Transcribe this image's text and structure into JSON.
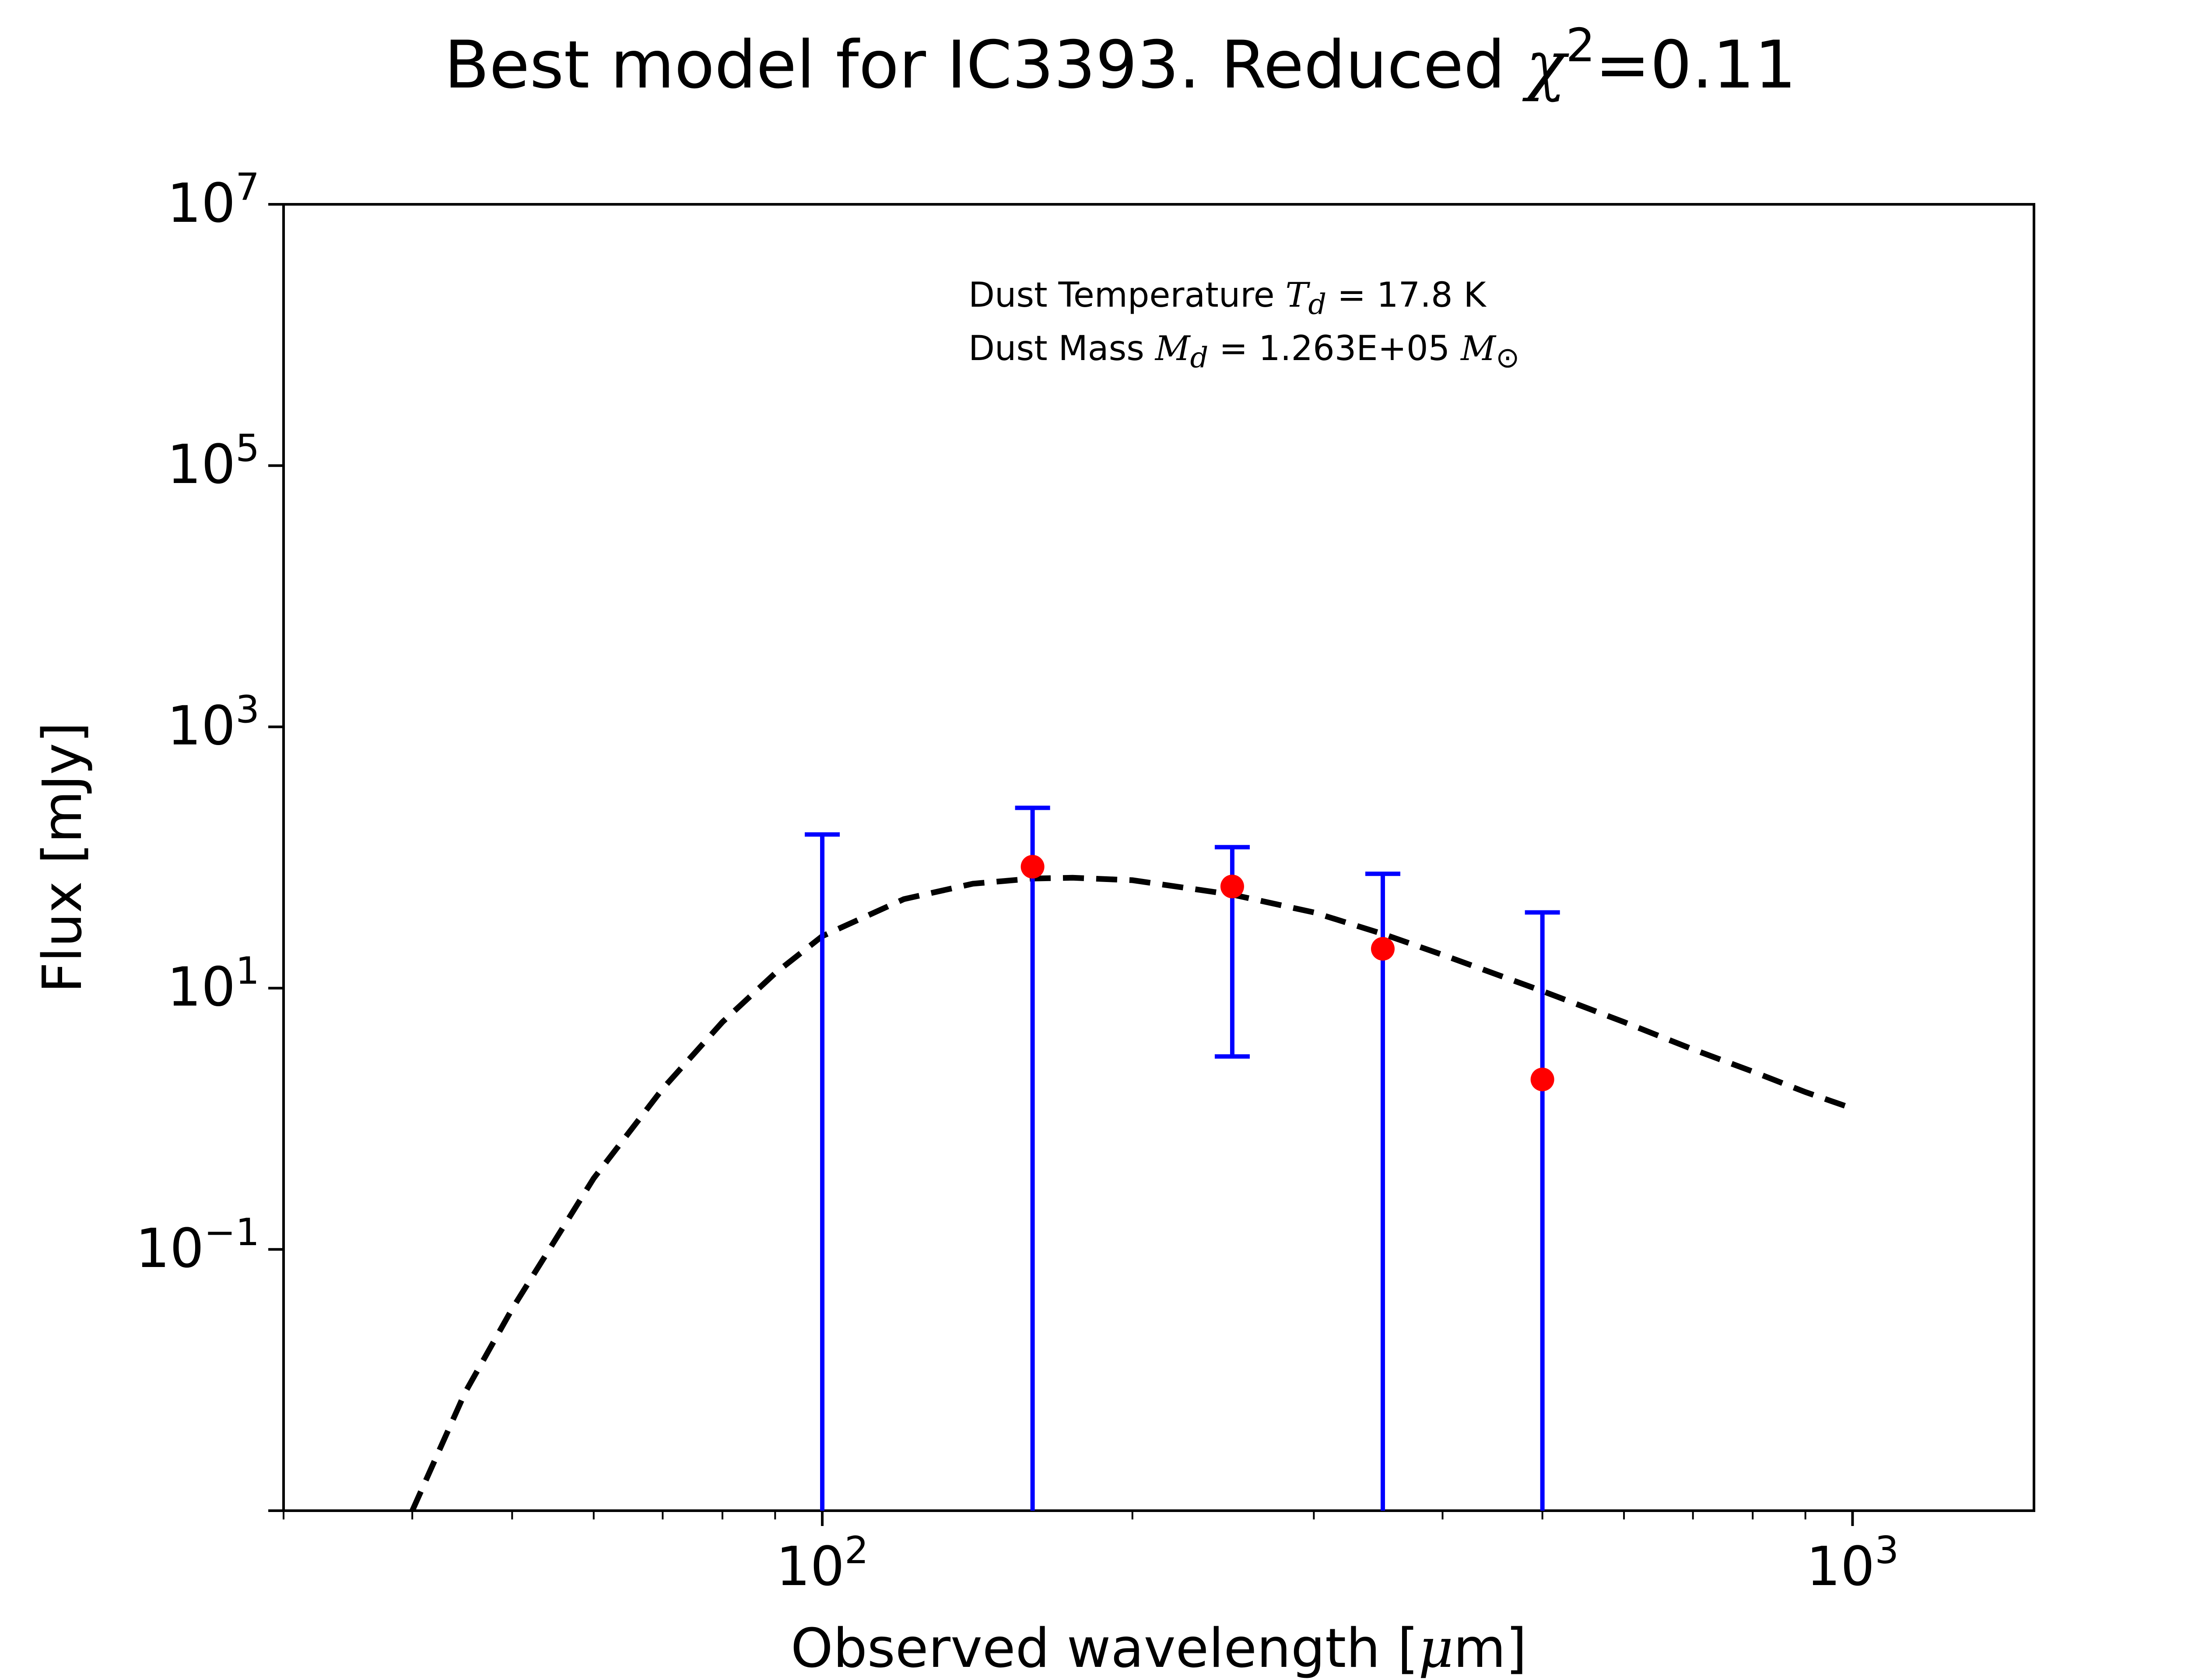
{
  "chart_data": {
    "type": "scatter",
    "title": "Best model for IC3393. Reduced χ²=0.11",
    "title_parts": {
      "main": "Best model for IC3393. Reduced ",
      "symbol": "χ",
      "sup": "2",
      "rest": "=0.11"
    },
    "xlabel": "Observed wavelength [μm]",
    "xlabel_parts": {
      "pre": "Observed wavelength [",
      "mu": "μ",
      "post": "m]"
    },
    "ylabel": "Flux [mJy]",
    "xscale": "log",
    "yscale": "log",
    "xlim": [
      30,
      1500
    ],
    "ylim": [
      0.001,
      10000000
    ],
    "x_ticks": [
      {
        "value": 100,
        "base": "10",
        "exp": "2"
      },
      {
        "value": 1000,
        "base": "10",
        "exp": "3"
      }
    ],
    "y_ticks": [
      {
        "value": 10000000,
        "base": "10",
        "exp": "7"
      },
      {
        "value": 100000,
        "base": "10",
        "exp": "5"
      },
      {
        "value": 1000,
        "base": "10",
        "exp": "3"
      },
      {
        "value": 10,
        "base": "10",
        "exp": "1"
      },
      {
        "value": 0.1,
        "base": "10",
        "exp": "−1"
      }
    ],
    "annotation": {
      "line1": {
        "pre": "Dust Temperature ",
        "sym": "T",
        "sub": "d",
        "post": " = 17.8 K"
      },
      "line2": {
        "pre": "Dust Mass ",
        "sym": "M",
        "sub": "d",
        "mid": " = 1.263E+05 ",
        "unit": "M",
        "unit_sub": "⊙"
      }
    },
    "series": [
      {
        "kind": "observed",
        "marker_color": "#ff0000",
        "errorbar_color": "#0000ff",
        "points": [
          {
            "x": 100,
            "y": null,
            "err_low": 0.001,
            "err_high": 150
          },
          {
            "x": 160,
            "y": 85,
            "err_low": 0.001,
            "err_high": 240
          },
          {
            "x": 250,
            "y": 60,
            "err_low": 3.0,
            "err_high": 120
          },
          {
            "x": 350,
            "y": 20,
            "err_low": 0.001,
            "err_high": 75
          },
          {
            "x": 500,
            "y": 2.0,
            "err_low": 0.001,
            "err_high": 38
          }
        ]
      },
      {
        "kind": "model",
        "line_style": "dashed",
        "line_color": "#000000",
        "x": [
          40,
          45,
          50,
          60,
          70,
          80,
          90,
          100,
          120,
          140,
          160,
          175,
          200,
          250,
          300,
          350,
          400,
          500,
          600,
          700,
          800,
          900,
          1000
        ],
        "y": [
          0.001,
          0.008,
          0.035,
          0.35,
          1.7,
          5.5,
          13,
          25,
          48,
          63,
          69,
          70,
          67,
          52,
          38,
          26,
          18,
          9.5,
          5.5,
          3.4,
          2.3,
          1.6,
          1.2
        ]
      }
    ]
  }
}
